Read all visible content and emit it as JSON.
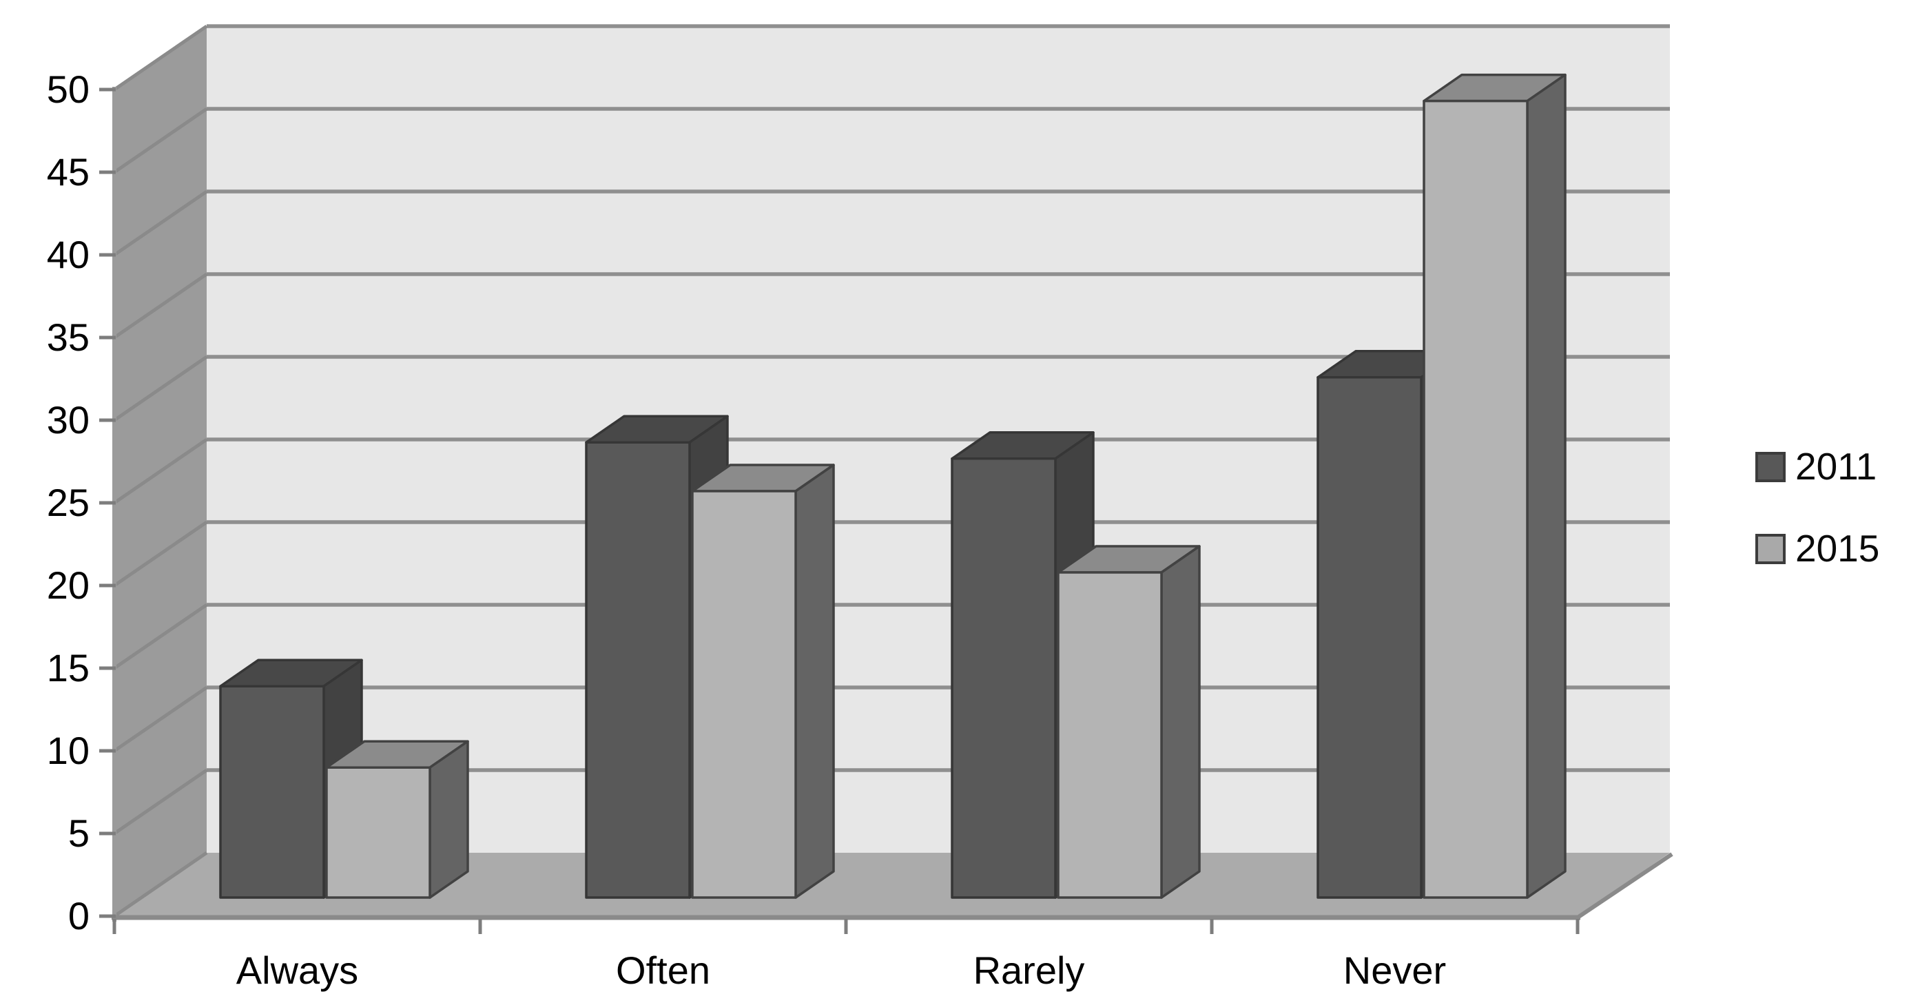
{
  "chart_data": {
    "type": "bar",
    "subtype": "3d-clustered-column",
    "title": "",
    "xlabel": "",
    "ylabel": "",
    "categories": [
      "Always",
      "Often",
      "Rarely",
      "Never"
    ],
    "series": [
      {
        "name": "2011",
        "values": [
          13,
          28,
          27,
          32
        ],
        "front_color": "#595959",
        "top_color": "#484848",
        "side_color": "#424242",
        "outline_color": "#363636",
        "legend_swatch": "#585858"
      },
      {
        "name": "2015",
        "values": [
          8,
          25,
          20,
          49
        ],
        "front_color": "#b4b4b4",
        "top_color": "#8b8b8b",
        "side_color": "#646464",
        "outline_color": "#424242",
        "legend_swatch": "#a9a9a9"
      }
    ],
    "ylim": [
      0,
      50
    ],
    "ytick_step": 5,
    "ytick_labels": [
      "0",
      "5",
      "10",
      "15",
      "20",
      "25",
      "30",
      "35",
      "40",
      "45",
      "50"
    ],
    "grid": "horizontal gridlines on back wall",
    "legend_position": "right",
    "palette": {
      "background": "#ffffff",
      "back_wall": "#e7e7e7",
      "left_wall": "#9b9b9b",
      "floor": "#ababab",
      "gridline": "#8f8f8f",
      "wall_slant_line": "#8a8a8a",
      "axis_edge_line": "#8a8a8a",
      "tick_mark": "#7d7d7d",
      "label_color": "#000000"
    }
  }
}
